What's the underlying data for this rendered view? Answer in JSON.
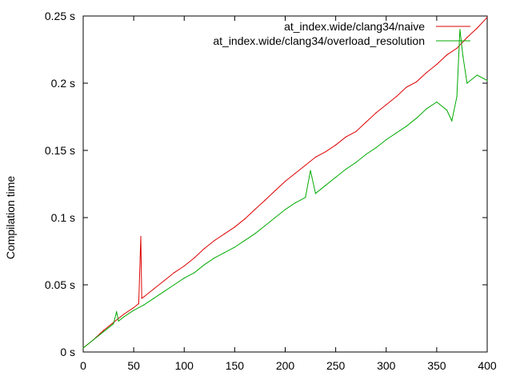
{
  "chart_data": {
    "type": "line",
    "title": "",
    "xlabel": "",
    "ylabel": "Compilation time",
    "xlim": [
      0,
      400
    ],
    "ylim": [
      0,
      0.25
    ],
    "grid": false,
    "legend_position": "top-right",
    "x_ticks": [
      "0",
      "50",
      "100",
      "150",
      "200",
      "250",
      "300",
      "350",
      "400"
    ],
    "y_ticks": [
      "0 s",
      "0.05 s",
      "0.1 s",
      "0.15 s",
      "0.2 s",
      "0.25 s"
    ],
    "series": [
      {
        "name": "at_index.wide/clang34/naive",
        "color": "#dd0000",
        "x": [
          0,
          10,
          20,
          30,
          40,
          50,
          55,
          57,
          58,
          60,
          70,
          80,
          90,
          100,
          110,
          120,
          130,
          140,
          150,
          160,
          170,
          180,
          190,
          200,
          210,
          220,
          230,
          240,
          250,
          260,
          270,
          280,
          290,
          300,
          310,
          320,
          330,
          340,
          350,
          360,
          370,
          380,
          390,
          400
        ],
        "y": [
          0.003,
          0.009,
          0.016,
          0.022,
          0.028,
          0.033,
          0.036,
          0.086,
          0.04,
          0.041,
          0.047,
          0.053,
          0.059,
          0.064,
          0.07,
          0.077,
          0.083,
          0.088,
          0.093,
          0.099,
          0.106,
          0.113,
          0.12,
          0.127,
          0.133,
          0.139,
          0.145,
          0.149,
          0.154,
          0.16,
          0.164,
          0.171,
          0.178,
          0.184,
          0.19,
          0.197,
          0.201,
          0.208,
          0.214,
          0.221,
          0.226,
          0.234,
          0.241,
          0.249
        ]
      },
      {
        "name": "at_index.wide/clang34/overload_resolution",
        "color": "#00aa00",
        "x": [
          0,
          10,
          20,
          30,
          33,
          35,
          40,
          50,
          60,
          70,
          80,
          90,
          100,
          110,
          120,
          130,
          140,
          150,
          160,
          170,
          180,
          190,
          200,
          210,
          220,
          225,
          230,
          240,
          250,
          260,
          270,
          280,
          290,
          300,
          310,
          320,
          330,
          340,
          350,
          360,
          365,
          370,
          373,
          376,
          380,
          390,
          400
        ],
        "y": [
          0.003,
          0.009,
          0.015,
          0.021,
          0.03,
          0.023,
          0.026,
          0.031,
          0.035,
          0.04,
          0.045,
          0.05,
          0.055,
          0.059,
          0.065,
          0.07,
          0.074,
          0.078,
          0.083,
          0.088,
          0.094,
          0.1,
          0.106,
          0.111,
          0.115,
          0.135,
          0.118,
          0.124,
          0.13,
          0.136,
          0.141,
          0.147,
          0.152,
          0.158,
          0.163,
          0.168,
          0.174,
          0.181,
          0.186,
          0.18,
          0.172,
          0.19,
          0.24,
          0.22,
          0.2,
          0.206,
          0.202
        ]
      }
    ]
  }
}
